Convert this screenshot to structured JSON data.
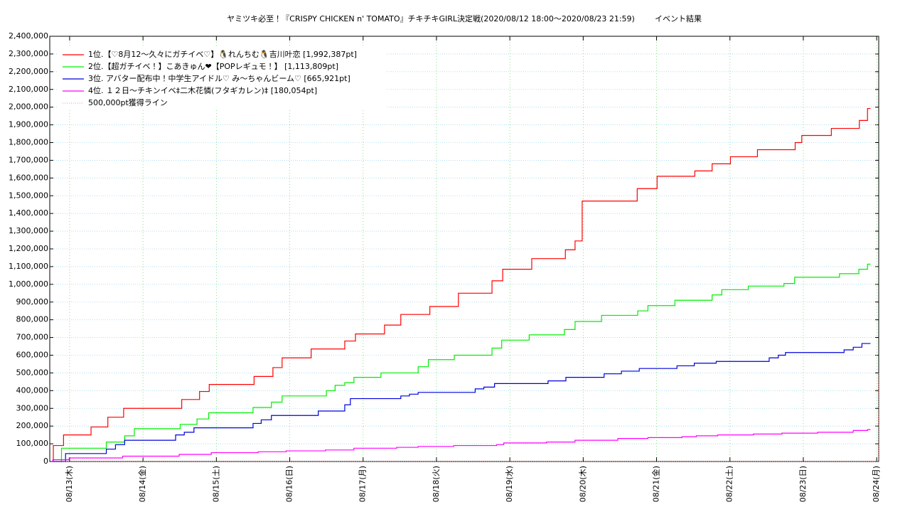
{
  "chart_data": {
    "type": "line",
    "step": true,
    "title": "ヤミツキ必至！『CRISPY CHICKEN n' TOMATO』チキチキGIRL決定戦(2020/08/12 18:00〜2020/08/23 21:59)",
    "subtitle": "イベント結果",
    "legend": "upper left",
    "grid": true,
    "xlim": [
      "08/12 17:30",
      "08/24 00:40"
    ],
    "xticks": [
      {
        "value": "08/13 00:00",
        "label": "08/13(木)"
      },
      {
        "value": "08/14 00:00",
        "label": "08/14(金)"
      },
      {
        "value": "08/15 00:00",
        "label": "08/15(土)"
      },
      {
        "value": "08/16 00:00",
        "label": "08/16(日)"
      },
      {
        "value": "08/17 00:00",
        "label": "08/17(月)"
      },
      {
        "value": "08/18 00:00",
        "label": "08/18(火)"
      },
      {
        "value": "08/19 00:00",
        "label": "08/19(水)"
      },
      {
        "value": "08/20 00:00",
        "label": "08/20(木)"
      },
      {
        "value": "08/21 00:00",
        "label": "08/21(金)"
      },
      {
        "value": "08/22 00:00",
        "label": "08/22(土)"
      },
      {
        "value": "08/23 00:00",
        "label": "08/23(日)"
      },
      {
        "value": "08/24 00:00",
        "label": "08/24(月)"
      }
    ],
    "ylim": [
      0,
      2400000
    ],
    "yticks": [
      0,
      {
        "value": 100000,
        "label": "100,000"
      },
      {
        "value": 200000,
        "label": "200,000"
      },
      {
        "value": 300000,
        "label": "300,000"
      },
      {
        "value": 400000,
        "label": "400,000"
      },
      {
        "value": 500000,
        "label": "500,000"
      },
      {
        "value": 600000,
        "label": "600,000"
      },
      {
        "value": 700000,
        "label": "700,000"
      },
      {
        "value": 800000,
        "label": "800,000"
      },
      {
        "value": 900000,
        "label": "900,000"
      },
      {
        "value": 1000000,
        "label": "1,000,000"
      },
      {
        "value": 1100000,
        "label": "1,100,000"
      },
      {
        "value": 1200000,
        "label": "1,200,000"
      },
      {
        "value": 1300000,
        "label": "1,300,000"
      },
      {
        "value": 1400000,
        "label": "1,400,000"
      },
      {
        "value": 1500000,
        "label": "1,500,000"
      },
      {
        "value": 1600000,
        "label": "1,600,000"
      },
      {
        "value": 1700000,
        "label": "1,700,000"
      },
      {
        "value": 1800000,
        "label": "1,800,000"
      },
      {
        "value": 1900000,
        "label": "1,900,000"
      },
      {
        "value": 2000000,
        "label": "2,000,000"
      },
      {
        "value": 2100000,
        "label": "2,100,000"
      },
      {
        "value": 2200000,
        "label": "2,200,000"
      },
      {
        "value": 2300000,
        "label": "2,300,000"
      },
      {
        "value": 2400000,
        "label": "2,400,000"
      }
    ],
    "series": [
      {
        "name": "1位.【♡8月12〜久々にガチイベ♡】🐧れんちむ🐧吉川叶恋 [1,992,387pt]",
        "color": "#ff0000",
        "x": [
          "08/12 18:00",
          "08/12 18:40",
          "08/12 22:00",
          "08/13 07:00",
          "08/13 12:30",
          "08/13 17:40",
          "08/14 12:40",
          "08/14 18:30",
          "08/14 21:40",
          "08/15 12:20",
          "08/15 18:30",
          "08/15 21:30",
          "08/16 07:00",
          "08/16 18:00",
          "08/16 21:30",
          "08/17 07:00",
          "08/17 12:20",
          "08/17 21:50",
          "08/18 07:10",
          "08/18 18:10",
          "08/18 21:40",
          "08/19 07:10",
          "08/19 18:10",
          "08/19 21:20",
          "08/19 23:40",
          "08/20 17:40",
          "08/21 00:10",
          "08/21 12:30",
          "08/21 18:10",
          "08/22 00:10",
          "08/22 09:00",
          "08/22 21:20",
          "08/22 23:30",
          "08/23 09:10",
          "08/23 18:20",
          "08/23 21:00",
          "08/23 21:59"
        ],
        "values": [
          0,
          90000,
          150000,
          195000,
          250000,
          300000,
          350000,
          395000,
          435000,
          480000,
          530000,
          585000,
          635000,
          680000,
          720000,
          770000,
          830000,
          875000,
          950000,
          1020000,
          1085000,
          1145000,
          1195000,
          1245000,
          1470000,
          1540000,
          1610000,
          1640000,
          1680000,
          1720000,
          1760000,
          1800000,
          1840000,
          1880000,
          1925000,
          1992387,
          1992387
        ]
      },
      {
        "name": "2位.【超ガチイベ！】こあきゅん❤【POPレギュモ！】 [1,113,809pt]",
        "color": "#00ee00",
        "x": [
          "08/12 18:00",
          "08/12 21:20",
          "08/13 12:00",
          "08/13 18:00",
          "08/13 21:10",
          "08/14 12:10",
          "08/14 17:40",
          "08/14 21:30",
          "08/15 12:00",
          "08/15 18:00",
          "08/15 21:30",
          "08/16 12:00",
          "08/16 14:50",
          "08/16 18:00",
          "08/16 21:00",
          "08/17 05:50",
          "08/17 18:00",
          "08/17 21:20",
          "08/18 05:50",
          "08/18 18:10",
          "08/18 21:20",
          "08/19 06:20",
          "08/19 17:50",
          "08/19 21:20",
          "08/20 06:00",
          "08/20 17:50",
          "08/20 21:10",
          "08/21 06:00",
          "08/21 18:10",
          "08/21 21:20",
          "08/22 06:00",
          "08/22 17:40",
          "08/22 21:10",
          "08/23 11:50",
          "08/23 18:10",
          "08/23 21:00",
          "08/23 21:59"
        ],
        "values": [
          0,
          75000,
          110000,
          145000,
          185000,
          210000,
          240000,
          275000,
          305000,
          335000,
          370000,
          400000,
          430000,
          445000,
          475000,
          500000,
          535000,
          575000,
          600000,
          640000,
          685000,
          715000,
          745000,
          790000,
          825000,
          850000,
          880000,
          910000,
          940000,
          970000,
          990000,
          1005000,
          1040000,
          1060000,
          1085000,
          1113809,
          1113809
        ]
      },
      {
        "name": "3位. アバター配布中！中学生アイドル♡ み〜ちゃんビーム♡ [665,921pt]",
        "color": "#0000dd",
        "x": [
          "08/12 18:00",
          "08/12 22:40",
          "08/13 12:00",
          "08/13 15:00",
          "08/13 18:00",
          "08/14 10:40",
          "08/14 13:30",
          "08/14 16:40",
          "08/15 12:00",
          "08/15 14:40",
          "08/15 18:00",
          "08/16 09:20",
          "08/16 18:00",
          "08/16 19:50",
          "08/17 12:20",
          "08/17 15:10",
          "08/17 18:00",
          "08/18 12:40",
          "08/18 15:30",
          "08/18 19:00",
          "08/19 12:30",
          "08/19 18:20",
          "08/20 06:50",
          "08/20 12:30",
          "08/20 18:20",
          "08/21 06:40",
          "08/21 12:20",
          "08/21 19:30",
          "08/22 12:50",
          "08/22 15:50",
          "08/22 18:10",
          "08/23 13:20",
          "08/23 16:20",
          "08/23 19:10",
          "08/23 21:59"
        ],
        "values": [
          0,
          45000,
          70000,
          95000,
          120000,
          150000,
          165000,
          190000,
          215000,
          235000,
          260000,
          285000,
          320000,
          355000,
          370000,
          380000,
          390000,
          410000,
          420000,
          440000,
          455000,
          475000,
          495000,
          510000,
          525000,
          540000,
          555000,
          565000,
          585000,
          600000,
          615000,
          630000,
          645000,
          665921,
          665921
        ]
      },
      {
        "name": "4位. １２日〜チキンイベ‡二木花憐(フタギカレン)‡ [180,054pt]",
        "color": "#ff00ff",
        "x": [
          "08/12 18:00",
          "08/12 18:30",
          "08/12 23:50",
          "08/13 17:20",
          "08/14 11:50",
          "08/14 22:20",
          "08/15 13:40",
          "08/15 22:50",
          "08/16 11:40",
          "08/16 21:00",
          "08/17 11:00",
          "08/17 18:00",
          "08/18 05:40",
          "08/18 19:40",
          "08/18 22:00",
          "08/19 12:00",
          "08/19 21:20",
          "08/20 11:20",
          "08/20 21:10",
          "08/21 08:20",
          "08/21 13:00",
          "08/21 20:00",
          "08/22 07:40",
          "08/22 17:00",
          "08/23 04:40",
          "08/23 16:20",
          "08/23 21:00",
          "08/23 21:59"
        ],
        "values": [
          0,
          10000,
          20000,
          30000,
          40000,
          50000,
          55000,
          60000,
          65000,
          75000,
          80000,
          85000,
          90000,
          95000,
          105000,
          110000,
          120000,
          130000,
          135000,
          140000,
          145000,
          150000,
          155000,
          160000,
          165000,
          175000,
          180054,
          180054
        ]
      },
      {
        "name": "500,000pt獲得ライン",
        "color": "#ff6666",
        "dash": true,
        "x": [
          "08/12 18:00",
          "08/24 00:40"
        ],
        "values": [
          0,
          500000
        ]
      }
    ]
  }
}
